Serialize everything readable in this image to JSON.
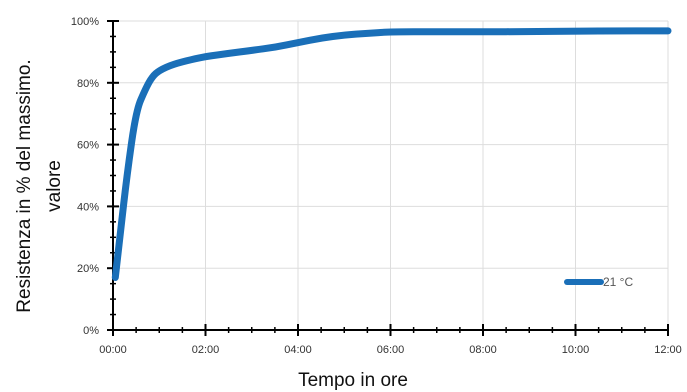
{
  "chart_data": {
    "type": "line",
    "title": "",
    "xlabel": "Tempo in ore",
    "ylabel_lines": [
      "Resistenza in % del massimo.",
      "valore"
    ],
    "xlim": [
      0,
      12
    ],
    "ylim": [
      0,
      100
    ],
    "x_ticks": [
      0,
      2,
      4,
      6,
      8,
      10,
      12
    ],
    "x_tick_labels": [
      "00:00",
      "02:00",
      "04:00",
      "06:00",
      "08:00",
      "10:00",
      "12:00"
    ],
    "y_ticks": [
      0,
      20,
      40,
      60,
      80,
      100
    ],
    "y_tick_labels": [
      "0%",
      "20%",
      "40%",
      "60%",
      "80%",
      "100%"
    ],
    "grid": true,
    "legend_position": "bottom-right",
    "series": [
      {
        "name": "21 °C",
        "color": "#1a6fb8",
        "x": [
          0.05,
          0.15,
          0.3,
          0.5,
          0.7,
          0.85,
          1.0,
          1.3,
          1.7,
          2.0,
          2.5,
          3.0,
          3.5,
          4.0,
          4.5,
          5.0,
          5.5,
          6.0,
          7.0,
          8.0,
          9.0,
          10.0,
          11.0,
          12.0
        ],
        "y": [
          17,
          30,
          50,
          71,
          78,
          82,
          84,
          86,
          87.5,
          88.5,
          89.5,
          90.5,
          91.5,
          93,
          94.5,
          95.5,
          96,
          96.5,
          96.5,
          96.5,
          96.6,
          96.7,
          96.8,
          96.8
        ]
      }
    ]
  }
}
